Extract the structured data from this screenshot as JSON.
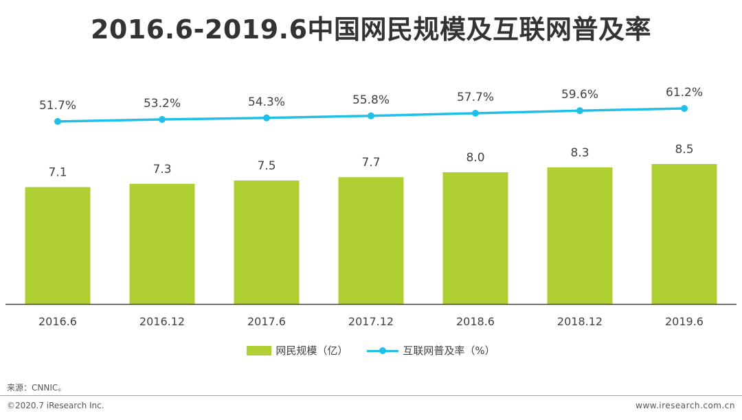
{
  "title": "2016.6-2019.6中国网民规模及互联网普及率",
  "colors": {
    "bar": "#afcf33",
    "line": "#1fbfe8",
    "axis": "#404040",
    "text": "#404040"
  },
  "chart_data": {
    "type": "bar",
    "categories": [
      "2016.6",
      "2016.12",
      "2017.6",
      "2017.12",
      "2018.6",
      "2018.12",
      "2019.6"
    ],
    "series": [
      {
        "name": "网民规模（亿）",
        "type": "bar",
        "values": [
          7.1,
          7.3,
          7.5,
          7.7,
          8.0,
          8.3,
          8.5
        ],
        "labels": [
          "7.1",
          "7.3",
          "7.5",
          "7.7",
          "8.0",
          "8.3",
          "8.5"
        ]
      },
      {
        "name": "互联网普及率（%）",
        "type": "line",
        "values": [
          51.7,
          53.2,
          54.3,
          55.8,
          57.7,
          59.6,
          61.2
        ],
        "labels": [
          "51.7%",
          "53.2%",
          "54.3%",
          "55.8%",
          "57.7%",
          "59.6%",
          "61.2%"
        ]
      }
    ],
    "bar_ylim": [
      0,
      15
    ],
    "line_ylim": [
      0,
      100
    ],
    "legend_position": "bottom"
  },
  "legend": {
    "bar_label": "网民规模（亿）",
    "line_label": "互联网普及率（%）"
  },
  "source": "来源：CNNIC。",
  "copyright": "©2020.7 iResearch Inc.",
  "website": "www.iresearch.com.cn"
}
